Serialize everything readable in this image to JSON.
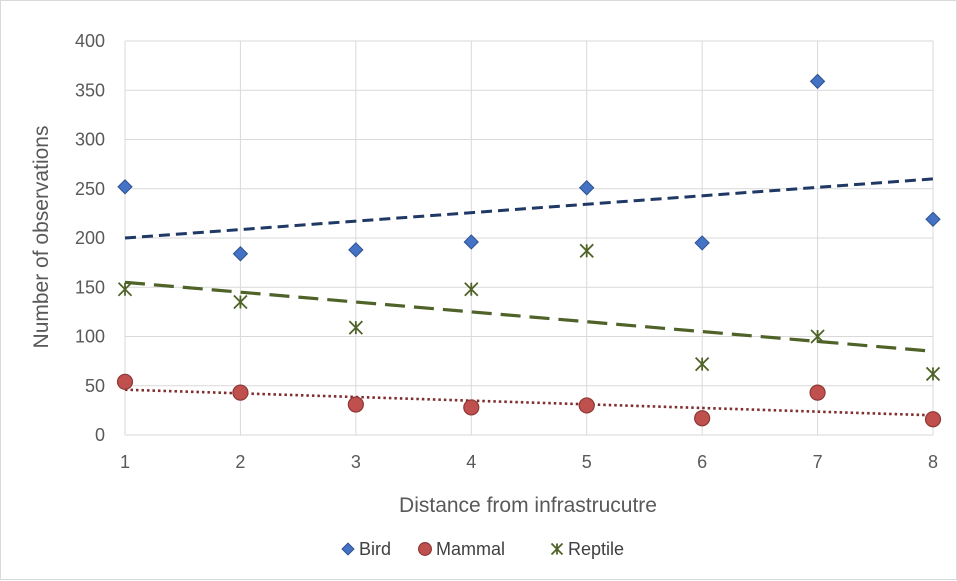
{
  "chart_data": {
    "type": "scatter",
    "xlabel": "Distance from infrastrucutre",
    "ylabel": "Number of observations",
    "xlim": [
      1,
      8
    ],
    "ylim": [
      0,
      400
    ],
    "xticks": [
      1,
      2,
      3,
      4,
      5,
      6,
      7,
      8
    ],
    "yticks": [
      0,
      50,
      100,
      150,
      200,
      250,
      300,
      350,
      400
    ],
    "grid": true,
    "legend_position": "bottom",
    "series": [
      {
        "name": "Bird",
        "marker": "diamond",
        "color": "#4472c4",
        "x": [
          1,
          2,
          3,
          4,
          5,
          6,
          7,
          8
        ],
        "values": [
          252,
          184,
          188,
          196,
          251,
          195,
          359,
          219
        ],
        "trendline": {
          "type": "linear",
          "style": "dashed",
          "color": "#1f3864",
          "start": 200,
          "end": 260
        }
      },
      {
        "name": "Mammal",
        "marker": "circle",
        "color": "#c0504d",
        "x": [
          1,
          2,
          3,
          4,
          5,
          6,
          7,
          8
        ],
        "values": [
          54,
          43,
          31,
          28,
          30,
          17,
          43,
          16
        ],
        "trendline": {
          "type": "linear",
          "style": "dotted",
          "color": "#7f2d2d",
          "start": 46,
          "end": 20
        }
      },
      {
        "name": "Reptile",
        "marker": "star",
        "color": "#4f6228",
        "x": [
          1,
          2,
          3,
          4,
          5,
          6,
          7,
          8
        ],
        "values": [
          148,
          135,
          109,
          148,
          187,
          72,
          100,
          62
        ],
        "trendline": {
          "type": "linear",
          "style": "long-dash",
          "color": "#4f6228",
          "start": 155,
          "end": 85
        }
      }
    ]
  }
}
